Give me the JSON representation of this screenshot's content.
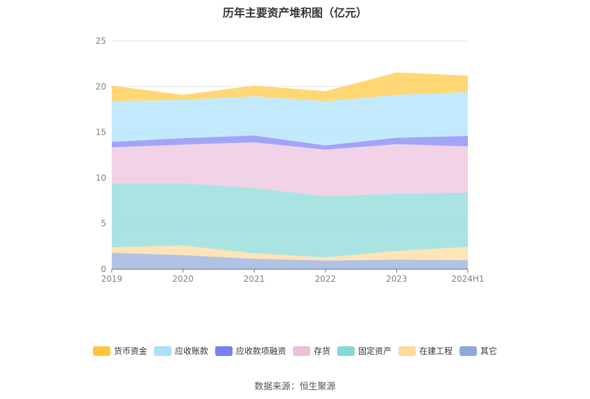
{
  "chart_data": {
    "type": "area",
    "stacked": true,
    "title": "历年主要资产堆积图（亿元）",
    "categories": [
      "2019",
      "2020",
      "2021",
      "2022",
      "2023",
      "2024H1"
    ],
    "ylim": [
      0,
      25
    ],
    "yticks": [
      0,
      5,
      10,
      15,
      20,
      25
    ],
    "grid": true,
    "legend_position": "bottom",
    "series": [
      {
        "name": "其它",
        "color": "#8fa9d8",
        "values": [
          1.8,
          1.55,
          1.15,
          0.95,
          1.05,
          1.0
        ]
      },
      {
        "name": "在建工程",
        "color": "#ffd99a",
        "values": [
          0.6,
          1.05,
          0.6,
          0.35,
          0.95,
          1.45
        ]
      },
      {
        "name": "固定资产",
        "color": "#84d8d6",
        "values": [
          7.0,
          6.8,
          7.15,
          6.7,
          6.25,
          5.95
        ]
      },
      {
        "name": "存货",
        "color": "#edbfdc",
        "values": [
          3.95,
          4.25,
          5.0,
          5.1,
          5.45,
          5.05
        ]
      },
      {
        "name": "应收款项融资",
        "color": "#7b7ef5",
        "values": [
          0.6,
          0.7,
          0.75,
          0.45,
          0.7,
          1.15
        ]
      },
      {
        "name": "应收账款",
        "color": "#a9e0fb",
        "values": [
          4.45,
          4.2,
          4.3,
          4.85,
          4.7,
          4.8
        ]
      },
      {
        "name": "货币资金",
        "color": "#ffc63a",
        "values": [
          1.7,
          0.55,
          1.15,
          1.1,
          2.45,
          1.8
        ]
      }
    ],
    "source": "数据来源：恒生聚源"
  }
}
